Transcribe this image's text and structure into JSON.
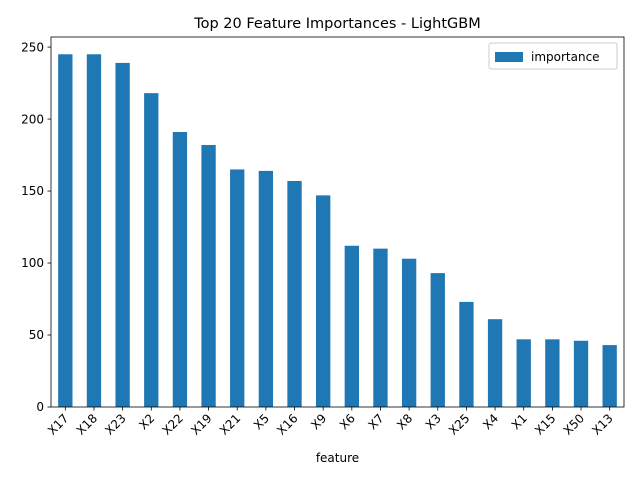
{
  "chart_data": {
    "type": "bar",
    "title": "Top 20 Feature Importances - LightGBM",
    "xlabel": "feature",
    "ylabel": "",
    "categories": [
      "X17",
      "X18",
      "X23",
      "X2",
      "X22",
      "X19",
      "X21",
      "X5",
      "X16",
      "X9",
      "X6",
      "X7",
      "X8",
      "X3",
      "X25",
      "X4",
      "X1",
      "X15",
      "X50",
      "X13"
    ],
    "series": [
      {
        "name": "importance",
        "color": "#1f77b4",
        "values": [
          245,
          245,
          239,
          218,
          191,
          182,
          165,
          164,
          157,
          147,
          112,
          110,
          103,
          93,
          73,
          61,
          47,
          47,
          46,
          43
        ]
      }
    ],
    "ylim": [
      0,
      257
    ],
    "yticks": [
      0,
      50,
      100,
      150,
      200,
      250
    ],
    "grid": false,
    "legend_position": "top-right",
    "xtick_rotation": 45
  }
}
